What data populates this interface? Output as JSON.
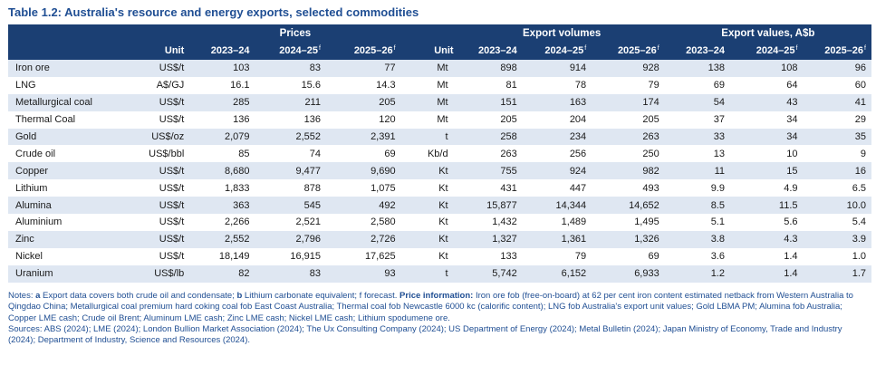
{
  "title": "Table 1.2: Australia's resource and energy exports, selected commodities",
  "groups": {
    "prices": "Prices",
    "volumes": "Export volumes",
    "values": "Export values, A$b"
  },
  "columns": {
    "unit": "Unit",
    "y1": "2023–24",
    "y2": "2024–25",
    "y3": "2025–26",
    "forecast_mark": "f"
  },
  "rows": [
    {
      "name": "Iron ore",
      "price_unit": "US$/t",
      "p1": "103",
      "p2": "83",
      "p3": "77",
      "vol_unit": "Mt",
      "v1": "898",
      "v2": "914",
      "v3": "928",
      "x1": "138",
      "x2": "108",
      "x3": "96"
    },
    {
      "name": "LNG",
      "price_unit": "A$/GJ",
      "p1": "16.1",
      "p2": "15.6",
      "p3": "14.3",
      "vol_unit": "Mt",
      "v1": "81",
      "v2": "78",
      "v3": "79",
      "x1": "69",
      "x2": "64",
      "x3": "60"
    },
    {
      "name": "Metallurgical coal",
      "price_unit": "US$/t",
      "p1": "285",
      "p2": "211",
      "p3": "205",
      "vol_unit": "Mt",
      "v1": "151",
      "v2": "163",
      "v3": "174",
      "x1": "54",
      "x2": "43",
      "x3": "41"
    },
    {
      "name": "Thermal Coal",
      "price_unit": "US$/t",
      "p1": "136",
      "p2": "136",
      "p3": "120",
      "vol_unit": "Mt",
      "v1": "205",
      "v2": "204",
      "v3": "205",
      "x1": "37",
      "x2": "34",
      "x3": "29"
    },
    {
      "name": "Gold",
      "price_unit": "US$/oz",
      "p1": "2,079",
      "p2": "2,552",
      "p3": "2,391",
      "vol_unit": "t",
      "v1": "258",
      "v2": "234",
      "v3": "263",
      "x1": "33",
      "x2": "34",
      "x3": "35"
    },
    {
      "name": "Crude oil",
      "price_unit": "US$/bbl",
      "p1": "85",
      "p2": "74",
      "p3": "69",
      "vol_unit": "Kb/d",
      "v1": "263",
      "v2": "256",
      "v3": "250",
      "x1": "13",
      "x2": "10",
      "x3": "9"
    },
    {
      "name": "Copper",
      "price_unit": "US$/t",
      "p1": "8,680",
      "p2": "9,477",
      "p3": "9,690",
      "vol_unit": "Kt",
      "v1": "755",
      "v2": "924",
      "v3": "982",
      "x1": "11",
      "x2": "15",
      "x3": "16"
    },
    {
      "name": "Lithium",
      "price_unit": "US$/t",
      "p1": "1,833",
      "p2": "878",
      "p3": "1,075",
      "vol_unit": "Kt",
      "v1": "431",
      "v2": "447",
      "v3": "493",
      "x1": "9.9",
      "x2": "4.9",
      "x3": "6.5"
    },
    {
      "name": "Alumina",
      "price_unit": "US$/t",
      "p1": "363",
      "p2": "545",
      "p3": "492",
      "vol_unit": "Kt",
      "v1": "15,877",
      "v2": "14,344",
      "v3": "14,652",
      "x1": "8.5",
      "x2": "11.5",
      "x3": "10.0"
    },
    {
      "name": "Aluminium",
      "price_unit": "US$/t",
      "p1": "2,266",
      "p2": "2,521",
      "p3": "2,580",
      "vol_unit": "Kt",
      "v1": "1,432",
      "v2": "1,489",
      "v3": "1,495",
      "x1": "5.1",
      "x2": "5.6",
      "x3": "5.4"
    },
    {
      "name": "Zinc",
      "price_unit": "US$/t",
      "p1": "2,552",
      "p2": "2,796",
      "p3": "2,726",
      "vol_unit": "Kt",
      "v1": "1,327",
      "v2": "1,361",
      "v3": "1,326",
      "x1": "3.8",
      "x2": "4.3",
      "x3": "3.9"
    },
    {
      "name": "Nickel",
      "price_unit": "US$/t",
      "p1": "18,149",
      "p2": "16,915",
      "p3": "17,625",
      "vol_unit": "Kt",
      "v1": "133",
      "v2": "79",
      "v3": "69",
      "x1": "3.6",
      "x2": "1.4",
      "x3": "1.0"
    },
    {
      "name": "Uranium",
      "price_unit": "US$/lb",
      "p1": "82",
      "p2": "83",
      "p3": "93",
      "vol_unit": "t",
      "v1": "5,742",
      "v2": "6,152",
      "v3": "6,933",
      "x1": "1.2",
      "x2": "1.4",
      "x3": "1.7"
    }
  ],
  "notes": {
    "prefix": "Notes:",
    "a_label": "a",
    "a_text": "Export data covers both crude oil and condensate;",
    "b_label": "b",
    "b_text": "Lithium carbonate equivalent; f forecast.",
    "price_label": "Price information:",
    "price_text": "Iron ore fob (free-on-board) at 62 per cent iron content estimated netback from Western Australia to Qingdao China; Metallurgical coal premium hard coking coal fob East Coast Australia; Thermal coal fob Newcastle 6000 kc (calorific content); LNG fob Australia's export unit values; Gold LBMA PM; Alumina fob Australia; Copper LME cash; Crude oil Brent; Aluminum LME cash; Zinc LME cash; Nickel LME cash; Lithium spodumene ore.",
    "sources": "Sources: ABS (2024); LME (2024); London Bullion Market Association (2024); The Ux Consulting Company (2024); US Department of Energy (2024); Metal Bulletin (2024); Japan Ministry of Economy, Trade and Industry (2024); Department of Industry, Science and Resources (2024)."
  }
}
